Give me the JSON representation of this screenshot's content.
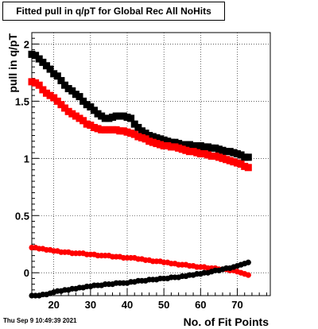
{
  "title": "Fitted pull in q/pT for Global Rec All NoHits",
  "footer": {
    "date": "Thu Sep  9 10:49:39 2021"
  },
  "chart_data": {
    "type": "scatter",
    "title": "Fitted pull in q/pT for Global Rec All NoHits",
    "xlabel": "No. of Fit Points",
    "ylabel": "pull in q/pT",
    "xlim": [
      14,
      79
    ],
    "ylim": [
      -0.2,
      2.1
    ],
    "x_ticks": [
      20,
      30,
      40,
      50,
      60,
      70
    ],
    "y_ticks": [
      0,
      0.5,
      1,
      1.5,
      2
    ],
    "y_tick_labels": [
      "0",
      "0.5",
      "1",
      "1.5",
      "2"
    ],
    "grid": true,
    "series": [
      {
        "color": "#000000",
        "marker": "square",
        "x": [
          14,
          15,
          16,
          17,
          18,
          19,
          20,
          21,
          22,
          23,
          24,
          25,
          26,
          27,
          28,
          29,
          30,
          31,
          32,
          33,
          34,
          35,
          36,
          37,
          38,
          39,
          40,
          41,
          42,
          43,
          44,
          45,
          46,
          47,
          48,
          49,
          50,
          51,
          52,
          53,
          54,
          55,
          56,
          57,
          58,
          59,
          60,
          61,
          62,
          63,
          64,
          65,
          66,
          67,
          68,
          69,
          70,
          71,
          72,
          73
        ],
        "y": [
          1.91,
          1.9,
          1.87,
          1.84,
          1.81,
          1.78,
          1.74,
          1.72,
          1.68,
          1.64,
          1.61,
          1.59,
          1.56,
          1.54,
          1.5,
          1.47,
          1.45,
          1.42,
          1.39,
          1.37,
          1.35,
          1.35,
          1.36,
          1.37,
          1.37,
          1.37,
          1.36,
          1.35,
          1.3,
          1.27,
          1.24,
          1.22,
          1.2,
          1.19,
          1.18,
          1.17,
          1.16,
          1.15,
          1.14,
          1.14,
          1.13,
          1.12,
          1.12,
          1.12,
          1.11,
          1.11,
          1.11,
          1.1,
          1.1,
          1.09,
          1.09,
          1.08,
          1.07,
          1.06,
          1.06,
          1.05,
          1.04,
          1.03,
          1.01,
          1.01
        ]
      },
      {
        "color": "#ff0000",
        "marker": "square",
        "x": [
          14,
          15,
          16,
          17,
          18,
          19,
          20,
          21,
          22,
          23,
          24,
          25,
          26,
          27,
          28,
          29,
          30,
          31,
          32,
          33,
          34,
          35,
          36,
          37,
          38,
          39,
          40,
          41,
          42,
          43,
          44,
          45,
          46,
          47,
          48,
          49,
          50,
          51,
          52,
          53,
          54,
          55,
          56,
          57,
          58,
          59,
          60,
          61,
          62,
          63,
          64,
          65,
          66,
          67,
          68,
          69,
          70,
          71,
          72,
          73
        ],
        "y": [
          1.67,
          1.66,
          1.64,
          1.6,
          1.57,
          1.55,
          1.53,
          1.5,
          1.47,
          1.44,
          1.41,
          1.39,
          1.37,
          1.35,
          1.33,
          1.3,
          1.29,
          1.27,
          1.26,
          1.25,
          1.25,
          1.25,
          1.25,
          1.25,
          1.24,
          1.24,
          1.23,
          1.22,
          1.21,
          1.19,
          1.18,
          1.17,
          1.15,
          1.14,
          1.13,
          1.12,
          1.11,
          1.11,
          1.1,
          1.1,
          1.09,
          1.08,
          1.07,
          1.06,
          1.06,
          1.05,
          1.04,
          1.04,
          1.03,
          1.02,
          1.02,
          1.01,
          1.0,
          0.99,
          0.98,
          0.97,
          0.96,
          0.95,
          0.93,
          0.92
        ]
      },
      {
        "color": "#ff0000",
        "marker": "circle",
        "x": [
          14,
          15,
          16,
          17,
          18,
          19,
          20,
          21,
          22,
          23,
          24,
          25,
          26,
          27,
          28,
          29,
          30,
          31,
          32,
          33,
          34,
          35,
          36,
          37,
          38,
          39,
          40,
          41,
          42,
          43,
          44,
          45,
          46,
          47,
          48,
          49,
          50,
          51,
          52,
          53,
          54,
          55,
          56,
          57,
          58,
          59,
          60,
          61,
          62,
          63,
          64,
          65,
          66,
          67,
          68,
          69,
          70,
          71,
          72,
          73
        ],
        "y": [
          0.22,
          0.22,
          0.21,
          0.21,
          0.2,
          0.2,
          0.19,
          0.19,
          0.18,
          0.18,
          0.18,
          0.17,
          0.17,
          0.17,
          0.17,
          0.16,
          0.16,
          0.16,
          0.15,
          0.15,
          0.15,
          0.15,
          0.14,
          0.14,
          0.14,
          0.13,
          0.13,
          0.13,
          0.13,
          0.12,
          0.12,
          0.11,
          0.11,
          0.1,
          0.1,
          0.1,
          0.09,
          0.09,
          0.08,
          0.08,
          0.07,
          0.07,
          0.07,
          0.06,
          0.06,
          0.05,
          0.05,
          0.05,
          0.04,
          0.04,
          0.04,
          0.03,
          0.03,
          0.03,
          0.02,
          0.02,
          0.01,
          0.0,
          -0.01,
          -0.02
        ]
      },
      {
        "color": "#000000",
        "marker": "circle",
        "x": [
          14,
          15,
          16,
          17,
          18,
          19,
          20,
          21,
          22,
          23,
          24,
          25,
          26,
          27,
          28,
          29,
          30,
          31,
          32,
          33,
          34,
          35,
          36,
          37,
          38,
          39,
          40,
          41,
          42,
          43,
          44,
          45,
          46,
          47,
          48,
          49,
          50,
          51,
          52,
          53,
          54,
          55,
          56,
          57,
          58,
          59,
          60,
          61,
          62,
          63,
          64,
          65,
          66,
          67,
          68,
          69,
          70,
          71,
          72,
          73
        ],
        "y": [
          -0.2,
          -0.2,
          -0.2,
          -0.19,
          -0.19,
          -0.18,
          -0.17,
          -0.16,
          -0.16,
          -0.15,
          -0.15,
          -0.14,
          -0.14,
          -0.13,
          -0.13,
          -0.12,
          -0.12,
          -0.11,
          -0.11,
          -0.11,
          -0.1,
          -0.1,
          -0.1,
          -0.09,
          -0.09,
          -0.09,
          -0.09,
          -0.08,
          -0.08,
          -0.07,
          -0.07,
          -0.07,
          -0.06,
          -0.06,
          -0.06,
          -0.05,
          -0.05,
          -0.05,
          -0.04,
          -0.04,
          -0.04,
          -0.03,
          -0.03,
          -0.02,
          -0.02,
          -0.01,
          -0.01,
          0.0,
          0.0,
          0.01,
          0.02,
          0.02,
          0.03,
          0.04,
          0.04,
          0.05,
          0.06,
          0.07,
          0.08,
          0.09
        ]
      }
    ]
  }
}
